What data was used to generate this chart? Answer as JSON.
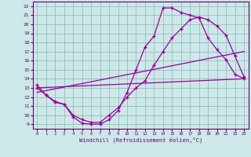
{
  "xlabel": "Windchill (Refroidissement éolien,°C)",
  "bg_color": "#cce8e8",
  "line_color": "#990099",
  "grid_color": "#99bbbb",
  "xlim": [
    -0.5,
    23.5
  ],
  "ylim": [
    8.5,
    22.5
  ],
  "xticks": [
    0,
    1,
    2,
    3,
    4,
    5,
    6,
    7,
    8,
    9,
    10,
    11,
    12,
    13,
    14,
    15,
    16,
    17,
    18,
    19,
    20,
    21,
    22,
    23
  ],
  "yticks": [
    9,
    10,
    11,
    12,
    13,
    14,
    15,
    16,
    17,
    18,
    19,
    20,
    21,
    22
  ],
  "line1_x": [
    0,
    1,
    2,
    3,
    4,
    5,
    6,
    7,
    8,
    9,
    10,
    11,
    12,
    13,
    14,
    15,
    16,
    17,
    18,
    19,
    20,
    21,
    22,
    23
  ],
  "line1_y": [
    13.3,
    12.2,
    11.4,
    11.2,
    9.8,
    9.1,
    9.0,
    9.0,
    9.5,
    10.5,
    12.5,
    15.0,
    17.5,
    18.7,
    21.8,
    21.8,
    21.3,
    21.0,
    20.7,
    18.5,
    17.2,
    16.1,
    14.5,
    14.0
  ],
  "line2_x": [
    0,
    1,
    2,
    3,
    4,
    5,
    6,
    7,
    8,
    9,
    10,
    11,
    12,
    13,
    14,
    15,
    16,
    17,
    18,
    19,
    20,
    21,
    22,
    23
  ],
  "line2_y": [
    13.0,
    12.2,
    11.5,
    11.2,
    10.0,
    9.5,
    9.2,
    9.2,
    10.0,
    10.8,
    12.0,
    13.0,
    13.8,
    15.5,
    17.0,
    18.5,
    19.5,
    20.5,
    20.8,
    20.5,
    19.8,
    18.8,
    16.5,
    14.2
  ],
  "line3_x": [
    0,
    23
  ],
  "line3_y": [
    13.0,
    14.0
  ],
  "line4_x": [
    0,
    23
  ],
  "line4_y": [
    12.5,
    17.0
  ]
}
